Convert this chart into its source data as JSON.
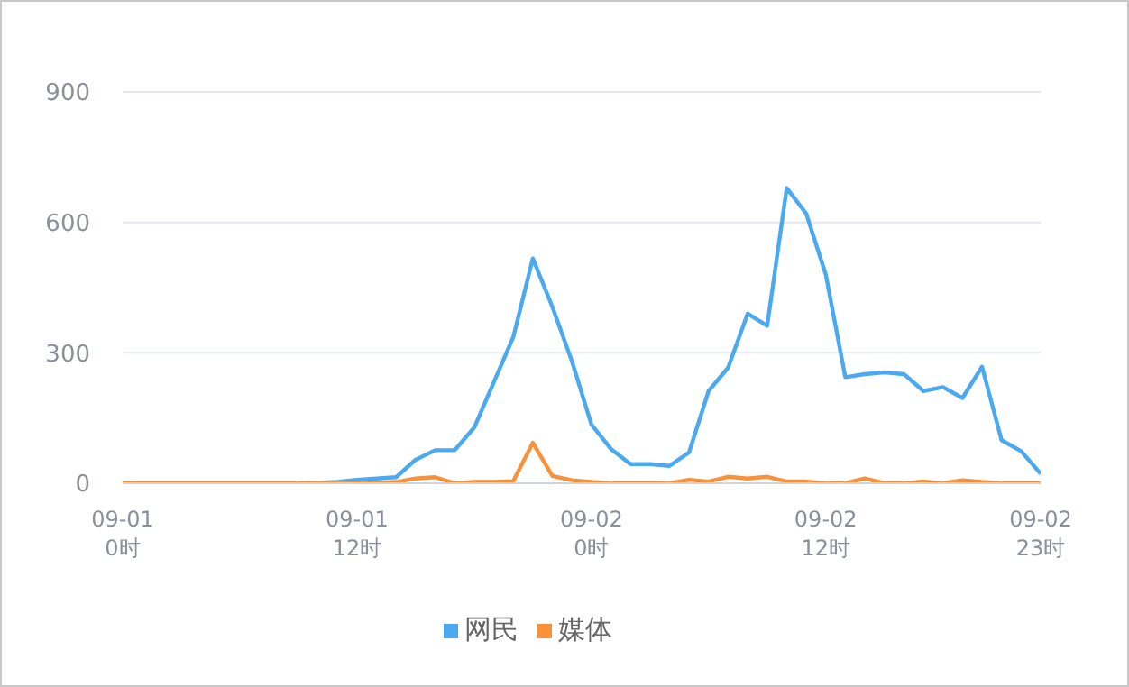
{
  "chart_data": {
    "type": "line",
    "categories": [
      "09-01\n0时",
      null,
      null,
      null,
      null,
      null,
      null,
      null,
      null,
      null,
      null,
      null,
      "09-01\n12时",
      null,
      null,
      null,
      null,
      null,
      null,
      null,
      null,
      null,
      null,
      null,
      "09-02\n0时",
      null,
      null,
      null,
      null,
      null,
      null,
      null,
      null,
      null,
      null,
      null,
      "09-02\n12时",
      null,
      null,
      null,
      null,
      null,
      null,
      null,
      null,
      null,
      null,
      "09-02\n23时"
    ],
    "series": [
      {
        "name": "网民",
        "color": "#4aa9ef",
        "values": [
          null,
          null,
          null,
          null,
          null,
          null,
          null,
          null,
          null,
          0,
          1,
          3,
          8,
          11,
          14,
          54,
          76,
          76,
          128,
          232,
          336,
          517,
          406,
          281,
          135,
          79,
          44,
          44,
          40,
          71,
          212,
          266,
          390,
          362,
          679,
          620,
          480,
          244,
          251,
          255,
          251,
          212,
          221,
          196,
          268,
          99,
          74,
          22
        ]
      },
      {
        "name": "媒体",
        "color": "#f7923a",
        "values": [
          0,
          0,
          0,
          0,
          0,
          0,
          0,
          0,
          0,
          0,
          0,
          0,
          0,
          0,
          3,
          11,
          14,
          0,
          3,
          3,
          5,
          93,
          17,
          7,
          3,
          0,
          0,
          0,
          0,
          8,
          4,
          15,
          11,
          15,
          4,
          4,
          0,
          0,
          11,
          0,
          0,
          4,
          0,
          7,
          3,
          0,
          0,
          0
        ]
      }
    ],
    "ylim": [
      0,
      900
    ],
    "yticks": [
      0,
      300,
      600,
      900
    ],
    "grid": "y",
    "legend": "bottom",
    "marker": "none",
    "line_style": "solid"
  }
}
